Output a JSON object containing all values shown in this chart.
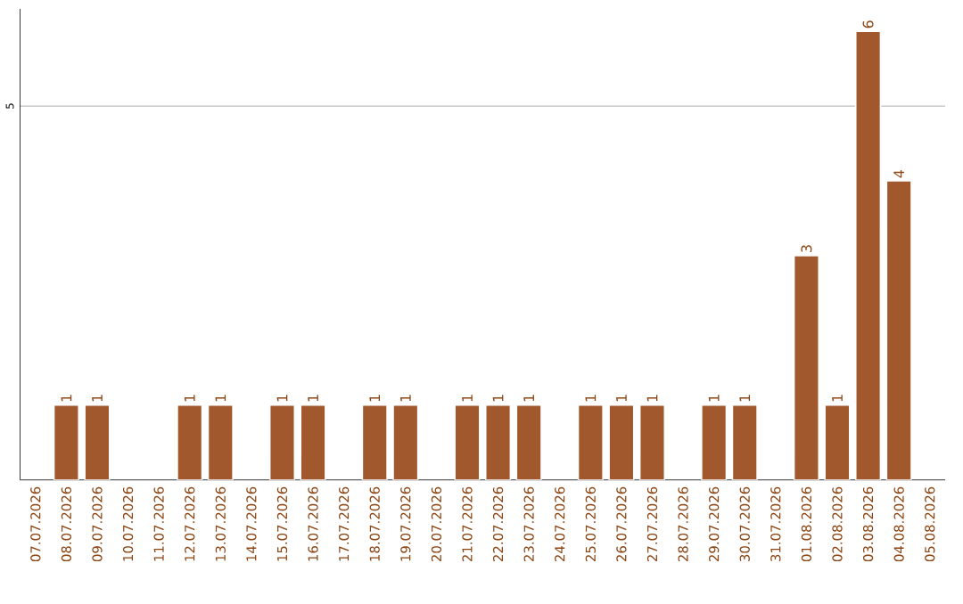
{
  "chart_data": {
    "type": "bar",
    "categories": [
      "07.07.2026",
      "08.07.2026",
      "09.07.2026",
      "10.07.2026",
      "11.07.2026",
      "12.07.2026",
      "13.07.2026",
      "14.07.2026",
      "15.07.2026",
      "16.07.2026",
      "17.07.2026",
      "18.07.2026",
      "19.07.2026",
      "20.07.2026",
      "21.07.2026",
      "22.07.2026",
      "23.07.2026",
      "24.07.2026",
      "25.07.2026",
      "26.07.2026",
      "27.07.2026",
      "28.07.2026",
      "29.07.2026",
      "30.07.2026",
      "31.07.2026",
      "01.08.2026",
      "02.08.2026",
      "03.08.2026",
      "04.08.2026",
      "05.08.2026"
    ],
    "values": [
      null,
      1,
      1,
      null,
      null,
      1,
      1,
      null,
      1,
      1,
      null,
      1,
      1,
      null,
      1,
      1,
      1,
      null,
      1,
      1,
      1,
      null,
      1,
      1,
      null,
      3,
      1,
      6,
      4,
      null
    ],
    "value_labels": [
      null,
      "1",
      "1",
      null,
      null,
      "1",
      "1",
      null,
      "1",
      "1",
      null,
      "1",
      "1",
      null,
      "1",
      "1",
      "1",
      null,
      "1",
      "1",
      "1",
      null,
      "1",
      "1",
      null,
      "3",
      "1",
      "6",
      "4",
      null
    ],
    "color": "#a0582c",
    "ylim": [
      0,
      6.3
    ],
    "yticks": [
      5
    ],
    "grid": "y"
  }
}
